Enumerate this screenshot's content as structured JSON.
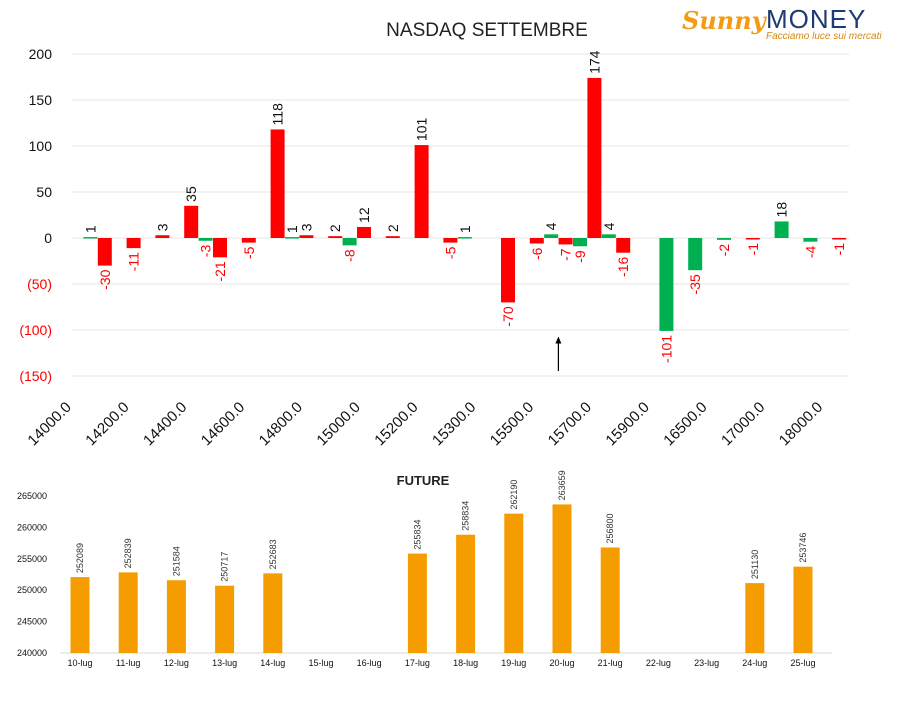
{
  "logo": {
    "brand": "SunnyMONEY",
    "word1": "Sunny",
    "word2": "MONEY",
    "tagline": "Facciamo luce sui mercati"
  },
  "colors": {
    "positive": "#ff0000",
    "negative": "#00b050",
    "future": "#f59c00",
    "neg_tick": "#ff0000"
  },
  "chart_data": [
    {
      "type": "bar",
      "title": "NASDAQ SETTEMBRE",
      "ylim": [
        -150,
        200
      ],
      "yticks": [
        "200",
        "150",
        "100",
        "50",
        "0",
        "(50)",
        "(100)",
        "(150)"
      ],
      "ytick_values": [
        200,
        150,
        100,
        50,
        0,
        -50,
        -100,
        -150
      ],
      "xtick_labels": [
        "14000.0",
        "14200.0",
        "14400.0",
        "14600.0",
        "14800.0",
        "15000.0",
        "15200.0",
        "15300.0",
        "15500.0",
        "15700.0",
        "15900.0",
        "16500.0",
        "17000.0",
        "18000.0"
      ],
      "grid": true,
      "bars": [
        {
          "x": 1,
          "value": 1,
          "color": "green"
        },
        {
          "x": 2,
          "value": -30,
          "color": "red"
        },
        {
          "x": 4,
          "value": -11,
          "color": "red"
        },
        {
          "x": 6,
          "value": 3,
          "color": "red"
        },
        {
          "x": 8,
          "value": 35,
          "color": "red"
        },
        {
          "x": 9,
          "value": -3,
          "color": "green"
        },
        {
          "x": 10,
          "value": -21,
          "color": "red"
        },
        {
          "x": 12,
          "value": -5,
          "color": "red"
        },
        {
          "x": 14,
          "value": 118,
          "color": "red"
        },
        {
          "x": 15,
          "value": 1,
          "color": "green"
        },
        {
          "x": 16,
          "value": 3,
          "color": "red"
        },
        {
          "x": 18,
          "value": 2,
          "color": "red"
        },
        {
          "x": 19,
          "value": -8,
          "color": "green"
        },
        {
          "x": 20,
          "value": 12,
          "color": "red"
        },
        {
          "x": 22,
          "value": 2,
          "color": "red"
        },
        {
          "x": 24,
          "value": 101,
          "color": "red"
        },
        {
          "x": 26,
          "value": -5,
          "color": "red"
        },
        {
          "x": 27,
          "value": 1,
          "color": "green"
        },
        {
          "x": 30,
          "value": -70,
          "color": "red"
        },
        {
          "x": 32,
          "value": -6,
          "color": "red"
        },
        {
          "x": 33,
          "value": 4,
          "color": "green"
        },
        {
          "x": 34,
          "value": -7,
          "color": "red"
        },
        {
          "x": 35,
          "value": -9,
          "color": "green"
        },
        {
          "x": 36,
          "value": 174,
          "color": "red"
        },
        {
          "x": 37,
          "value": 4,
          "color": "green"
        },
        {
          "x": 38,
          "value": -16,
          "color": "red"
        },
        {
          "x": 41,
          "value": -101,
          "color": "green"
        },
        {
          "x": 43,
          "value": -35,
          "color": "green"
        },
        {
          "x": 45,
          "value": -2,
          "color": "green"
        },
        {
          "x": 47,
          "value": -1,
          "color": "red"
        },
        {
          "x": 49,
          "value": 18,
          "color": "green"
        },
        {
          "x": 51,
          "value": -4,
          "color": "green"
        },
        {
          "x": 53,
          "value": -1,
          "color": "red"
        }
      ],
      "annotation": {
        "type": "arrow",
        "x": 33.5,
        "from": -150,
        "to": -107
      }
    },
    {
      "type": "bar",
      "title": "FUTURE",
      "ylim": [
        240000,
        265000
      ],
      "yticks": [
        "265000",
        "260000",
        "255000",
        "250000",
        "245000",
        "240000"
      ],
      "ytick_values": [
        265000,
        260000,
        255000,
        250000,
        245000,
        240000
      ],
      "categories": [
        "10-lug",
        "11-lug",
        "12-lug",
        "13-lug",
        "14-lug",
        "15-lug",
        "16-lug",
        "17-lug",
        "18-lug",
        "19-lug",
        "20-lug",
        "21-lug",
        "22-lug",
        "23-lug",
        "24-lug",
        "25-lug"
      ],
      "values": [
        252089,
        252839,
        251584,
        250717,
        252683,
        null,
        null,
        255834,
        258834,
        262190,
        263659,
        256800,
        null,
        null,
        251130,
        253746
      ],
      "labels": [
        "252089",
        "252839",
        "251584",
        "250717",
        "252683",
        "",
        "",
        "255834",
        "258834",
        "262190",
        "263659",
        "256800",
        "",
        "",
        "251130",
        "253746"
      ],
      "grid": false
    }
  ]
}
